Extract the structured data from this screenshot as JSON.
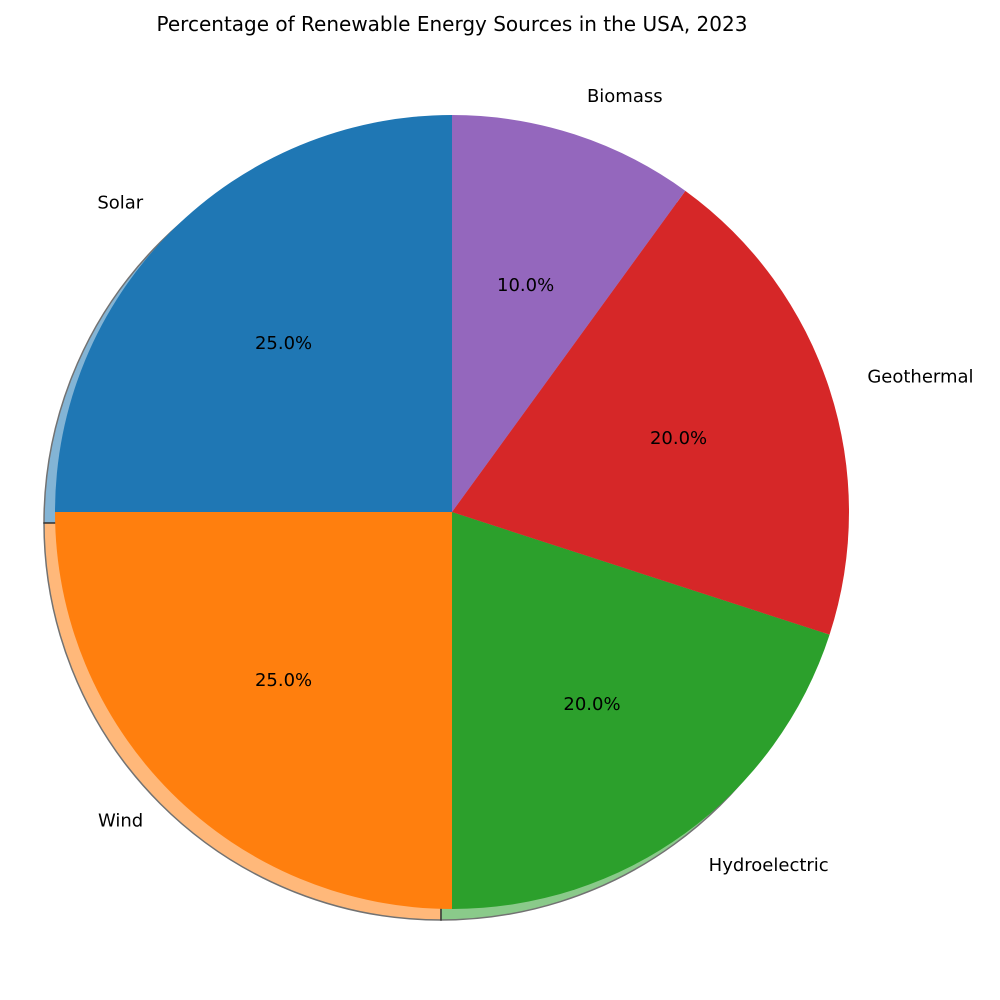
{
  "chart_data": {
    "type": "pie",
    "title": "Percentage of Renewable Energy Sources in the USA, 2023",
    "start_angle_deg": 90,
    "direction": "counterclockwise",
    "shadow": true,
    "slices": [
      {
        "label": "Solar",
        "value": 25,
        "pct_label": "25.0%",
        "color": "#1f77b4"
      },
      {
        "label": "Wind",
        "value": 25,
        "pct_label": "25.0%",
        "color": "#ff7f0e"
      },
      {
        "label": "Hydroelectric",
        "value": 20,
        "pct_label": "20.0%",
        "color": "#2ca02c"
      },
      {
        "label": "Geothermal",
        "value": 20,
        "pct_label": "20.0%",
        "color": "#d62728"
      },
      {
        "label": "Biomass",
        "value": 10,
        "pct_label": "10.0%",
        "color": "#9467bd"
      }
    ]
  }
}
